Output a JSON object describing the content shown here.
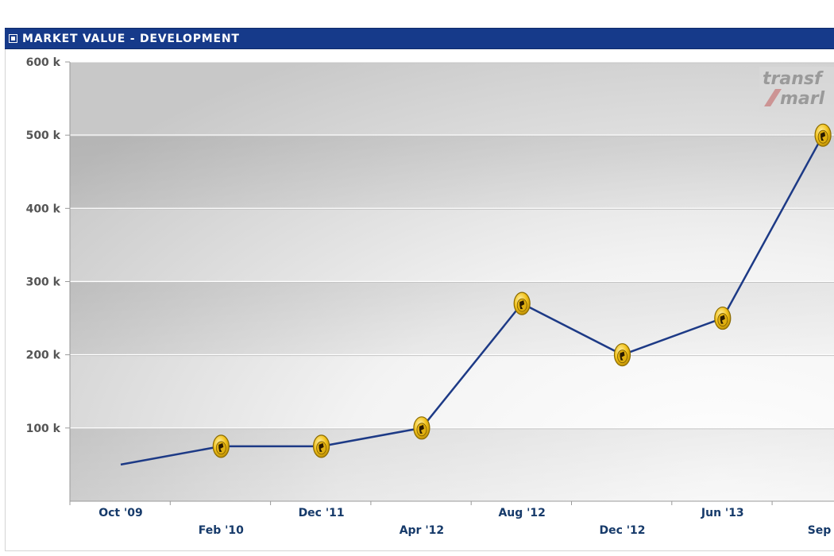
{
  "header": {
    "title": "MARKET VALUE - DEVELOPMENT"
  },
  "watermark": {
    "line1": "transf",
    "line2": "marl"
  },
  "colors": {
    "header_bg": "#163a8a",
    "line": "#1d3a86",
    "marker_fill": "#f2c21b",
    "marker_stroke": "#8a6a00"
  },
  "chart_data": {
    "type": "line",
    "title": "MARKET VALUE - DEVELOPMENT",
    "xlabel": "",
    "ylabel": "",
    "ylim": [
      0,
      600000
    ],
    "y_ticks": [
      100000,
      200000,
      300000,
      400000,
      500000,
      600000
    ],
    "y_tick_labels": [
      "100 k",
      "200 k",
      "300 k",
      "400 k",
      "500 k",
      "600 k"
    ],
    "categories": [
      "Oct '09",
      "Feb '10",
      "Dec '11",
      "Apr '12",
      "Aug '12",
      "Dec '12",
      "Jun '13",
      "Sep '"
    ],
    "values": [
      50000,
      75000,
      75000,
      100000,
      270000,
      200000,
      250000,
      500000
    ],
    "markers": [
      false,
      true,
      true,
      true,
      true,
      true,
      true,
      true
    ],
    "grid": true,
    "icon": "club-crest-icon"
  }
}
